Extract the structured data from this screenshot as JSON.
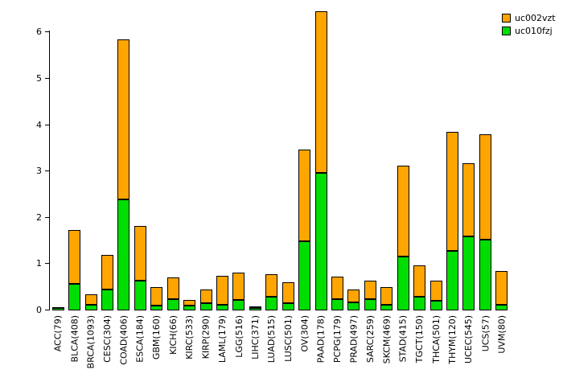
{
  "chart_data": {
    "type": "bar",
    "stacked": true,
    "title": "",
    "xlabel": "",
    "ylabel": "",
    "categories": [
      "ACC(79)",
      "BLCA(408)",
      "BRCA(1093)",
      "CESC(304)",
      "COAD(406)",
      "ESCA(184)",
      "GBM(160)",
      "KICH(66)",
      "KIRC(533)",
      "KIRP(290)",
      "LAML(179)",
      "LGG(516)",
      "LIHC(371)",
      "LUAD(515)",
      "LUSC(501)",
      "OV(304)",
      "PAAD(178)",
      "PCPG(179)",
      "PRAD(497)",
      "SARC(259)",
      "SKCM(469)",
      "STAD(415)",
      "TGCT(150)",
      "THCA(501)",
      "THYM(120)",
      "UCEC(545)",
      "UCS(57)",
      "UVM(80)"
    ],
    "series": [
      {
        "name": "uc002vzt",
        "color": "#FFA500",
        "values": [
          0.02,
          1.15,
          0.22,
          0.75,
          3.45,
          1.17,
          0.4,
          0.47,
          0.12,
          0.3,
          0.63,
          0.6,
          0.04,
          0.48,
          0.45,
          1.97,
          3.48,
          0.48,
          0.27,
          0.4,
          0.38,
          1.95,
          0.68,
          0.45,
          2.57,
          1.57,
          2.28,
          0.73
        ]
      },
      {
        "name": "uc010fzj",
        "color": "#00DD00",
        "values": [
          0.05,
          0.58,
          0.13,
          0.45,
          2.4,
          0.65,
          0.1,
          0.25,
          0.1,
          0.15,
          0.12,
          0.22,
          0.05,
          0.3,
          0.15,
          1.5,
          2.97,
          0.25,
          0.18,
          0.25,
          0.12,
          1.17,
          0.3,
          0.2,
          1.28,
          1.6,
          1.52,
          0.12
        ]
      }
    ],
    "stack_order_bottom_to_top": [
      "uc010fzj",
      "uc002vzt"
    ],
    "yticks": [
      0,
      1,
      2,
      3,
      4,
      5,
      6
    ],
    "ylim": [
      0,
      6.6
    ],
    "grid": false,
    "legend_position": "top-right"
  }
}
